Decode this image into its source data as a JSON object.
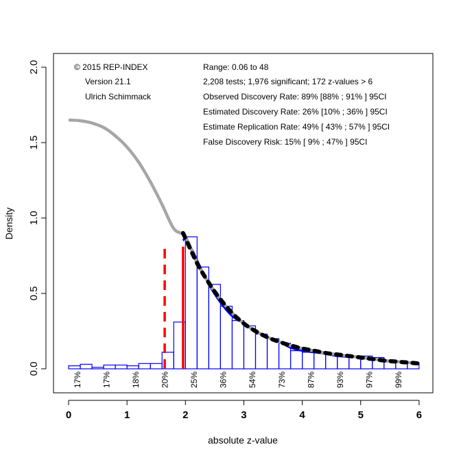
{
  "chart_data": {
    "type": "bar",
    "title": "",
    "xlabel": "absolute z-value",
    "ylabel": "Density",
    "xlim": [
      0,
      6
    ],
    "ylim": [
      0,
      2.0
    ],
    "x_ticks": [
      "0",
      "1",
      "2",
      "3",
      "4",
      "5",
      "6"
    ],
    "y_ticks": [
      "0.0",
      "0.5",
      "1.0",
      "1.5",
      "2.0"
    ],
    "grid": false,
    "histogram": {
      "bin_width": 0.2,
      "bin_starts": [
        0.0,
        0.2,
        0.4,
        0.6,
        0.8,
        1.0,
        1.2,
        1.4,
        1.6,
        1.8,
        2.0,
        2.2,
        2.4,
        2.6,
        2.8,
        3.0,
        3.2,
        3.4,
        3.6,
        3.8,
        4.0,
        4.2,
        4.4,
        4.6,
        4.8,
        5.0,
        5.2,
        5.4,
        5.6,
        5.8
      ],
      "values": [
        0.02,
        0.03,
        0.01,
        0.025,
        0.025,
        0.02,
        0.035,
        0.035,
        0.11,
        0.31,
        0.875,
        0.675,
        0.56,
        0.415,
        0.32,
        0.285,
        0.23,
        0.2,
        0.17,
        0.12,
        0.11,
        0.11,
        0.1,
        0.09,
        0.085,
        0.085,
        0.075,
        0.045,
        0.045,
        0.04
      ],
      "color": "#0000ff"
    },
    "grey_curve": {
      "name": "z-curve fitted density",
      "color": "#a6a6a6",
      "x": [
        0.0,
        0.2,
        0.4,
        0.6,
        0.8,
        1.0,
        1.2,
        1.4,
        1.6,
        1.8,
        2.0,
        2.2,
        2.4,
        2.6,
        2.8,
        3.0,
        3.2,
        3.4,
        3.6,
        3.8,
        4.0,
        4.2,
        4.4,
        4.6,
        4.8,
        5.0,
        5.2,
        5.4,
        5.6,
        5.8,
        6.0
      ],
      "y": [
        1.65,
        1.645,
        1.63,
        1.6,
        1.545,
        1.47,
        1.37,
        1.24,
        1.09,
        0.93,
        0.875,
        0.7,
        0.57,
        0.46,
        0.37,
        0.3,
        0.25,
        0.21,
        0.18,
        0.155,
        0.135,
        0.12,
        0.105,
        0.095,
        0.085,
        0.075,
        0.065,
        0.055,
        0.048,
        0.042,
        0.035
      ]
    },
    "black_dashed_curve": {
      "name": "z-curve fit (significant)",
      "color": "#000000",
      "x": [
        1.96,
        2.2,
        2.4,
        2.6,
        2.8,
        3.0,
        3.2,
        3.4,
        3.6,
        3.8,
        4.0,
        4.2,
        4.4,
        4.6,
        4.8,
        5.0,
        5.2,
        5.4,
        5.6,
        5.8,
        6.0
      ],
      "y": [
        0.9,
        0.7,
        0.57,
        0.46,
        0.37,
        0.3,
        0.25,
        0.21,
        0.18,
        0.155,
        0.135,
        0.12,
        0.105,
        0.095,
        0.085,
        0.075,
        0.065,
        0.055,
        0.048,
        0.042,
        0.035
      ]
    },
    "blue_curve": {
      "name": "kernel density",
      "color": "#0000ff",
      "x": [
        1.96,
        2.0,
        2.1,
        2.2,
        2.4,
        2.6,
        2.8,
        3.0,
        3.2,
        3.4,
        3.6,
        3.8,
        4.0,
        4.2,
        4.4,
        4.6,
        4.8,
        5.0,
        5.2,
        5.4,
        5.6,
        5.8,
        6.0
      ],
      "y": [
        0.85,
        0.86,
        0.8,
        0.72,
        0.56,
        0.44,
        0.35,
        0.3,
        0.25,
        0.21,
        0.18,
        0.14,
        0.12,
        0.11,
        0.1,
        0.085,
        0.08,
        0.078,
        0.065,
        0.055,
        0.048,
        0.042,
        0.035
      ]
    },
    "red_lines": [
      {
        "z": 1.645,
        "style": "dashed",
        "top": 0.81,
        "color": "#ff0000"
      },
      {
        "z": 1.96,
        "style": "solid",
        "top": 0.81,
        "color": "#ff0000"
      }
    ],
    "percent_labels": {
      "z": [
        0.15,
        0.65,
        1.15,
        1.65,
        2.15,
        2.65,
        3.15,
        3.65,
        4.15,
        4.65,
        5.15,
        5.65
      ],
      "labels": [
        "17%",
        "17%",
        "18%",
        "20%",
        "25%",
        "36%",
        "54%",
        "73%",
        "87%",
        "93%",
        "97%",
        "99%"
      ]
    },
    "annotations_left": [
      "© 2015 REP-INDEX",
      "Version 21.1",
      "Ulrich Schimmack"
    ],
    "annotations_right": [
      "Range: 0.06 to 48",
      "2,208 tests; 1,976 significant; 172 z-values > 6",
      "Observed Discovery Rate: 89% [88% ; 91% ] 95CI",
      "Estimated Discovery Rate: 26% [10% ; 36% ] 95CI",
      "Estimate Replication Rate: 49% [ 43% ; 57% ] 95CI",
      "False Discovery Risk: 15% [ 9% ; 47% ] 95CI"
    ]
  }
}
